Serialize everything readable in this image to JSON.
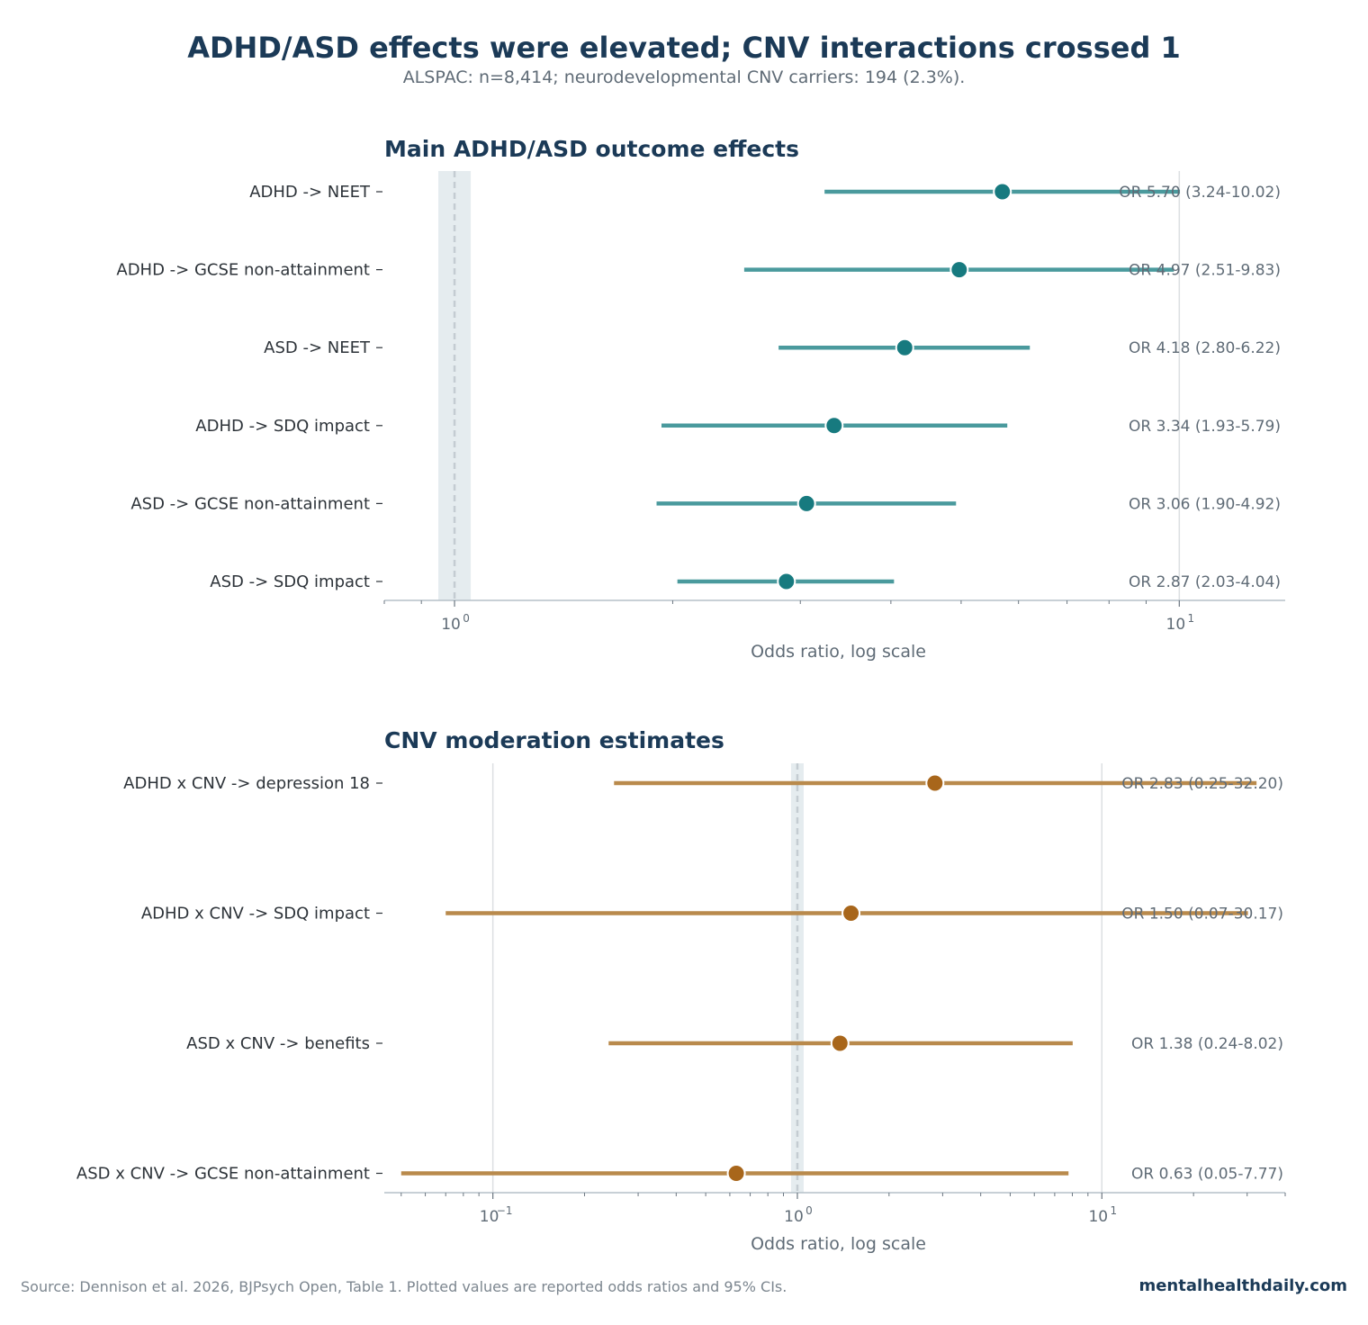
{
  "title": "ADHD/ASD effects were elevated; CNV interactions crossed 1",
  "subtitle": "ALSPAC: n=8,414; neurodevelopmental CNV carriers: 194 (2.3%).",
  "footer": {
    "source": "Source: Dennison et al. 2026, BJPsych Open, Table 1. Plotted values are reported odds ratios and 95% CIs.",
    "brand": "mentalhealthdaily.com"
  },
  "colors": {
    "title": "#1b3a57",
    "main_line": "#4a9a9d",
    "main_point": "#177a7f",
    "cnv_line": "#b98a4c",
    "cnv_point": "#a8661b",
    "reference_band": "#e5ecef",
    "axis": "#b5c0c8"
  },
  "chart_data": [
    {
      "type": "forest",
      "title": "Main ADHD/ASD outcome effects",
      "xlabel": "Odds ratio, log scale",
      "xscale": "log",
      "xlim": [
        0.8,
        14
      ],
      "major_ticks": [
        {
          "value": 1,
          "label": "10",
          "exp": "0"
        },
        {
          "value": 10,
          "label": "10",
          "exp": "1"
        }
      ],
      "reference_line": 1,
      "rows": [
        {
          "label": "ADHD -> NEET",
          "or": 5.7,
          "lo": 3.24,
          "hi": 10.02,
          "text": "OR 5.70 (3.24-10.02)"
        },
        {
          "label": "ADHD -> GCSE non-attainment",
          "or": 4.97,
          "lo": 2.51,
          "hi": 9.83,
          "text": "OR 4.97 (2.51-9.83)"
        },
        {
          "label": "ASD -> NEET",
          "or": 4.18,
          "lo": 2.8,
          "hi": 6.22,
          "text": "OR 4.18 (2.80-6.22)"
        },
        {
          "label": "ADHD -> SDQ impact",
          "or": 3.34,
          "lo": 1.93,
          "hi": 5.79,
          "text": "OR 3.34 (1.93-5.79)"
        },
        {
          "label": "ASD -> GCSE non-attainment",
          "or": 3.06,
          "lo": 1.9,
          "hi": 4.92,
          "text": "OR 3.06 (1.90-4.92)"
        },
        {
          "label": "ASD -> SDQ impact",
          "or": 2.87,
          "lo": 2.03,
          "hi": 4.04,
          "text": "OR 2.87 (2.03-4.04)"
        }
      ]
    },
    {
      "type": "forest",
      "title": "CNV moderation estimates",
      "xlabel": "Odds ratio, log scale",
      "xscale": "log",
      "xlim": [
        0.044,
        40
      ],
      "major_ticks": [
        {
          "value": 0.1,
          "label": "10",
          "exp": "−1"
        },
        {
          "value": 1,
          "label": "10",
          "exp": "0"
        },
        {
          "value": 10,
          "label": "10",
          "exp": "1"
        }
      ],
      "reference_line": 1,
      "rows": [
        {
          "label": "ADHD x CNV -> depression 18",
          "or": 2.83,
          "lo": 0.25,
          "hi": 32.2,
          "text": "OR 2.83 (0.25-32.20)"
        },
        {
          "label": "ADHD x CNV -> SDQ impact",
          "or": 1.5,
          "lo": 0.07,
          "hi": 30.17,
          "text": "OR 1.50 (0.07-30.17)"
        },
        {
          "label": "ASD x CNV -> benefits",
          "or": 1.38,
          "lo": 0.24,
          "hi": 8.02,
          "text": "OR 1.38 (0.24-8.02)"
        },
        {
          "label": "ASD x CNV -> GCSE non-attainment",
          "or": 0.63,
          "lo": 0.05,
          "hi": 7.77,
          "text": "OR 0.63 (0.05-7.77)"
        }
      ]
    }
  ]
}
